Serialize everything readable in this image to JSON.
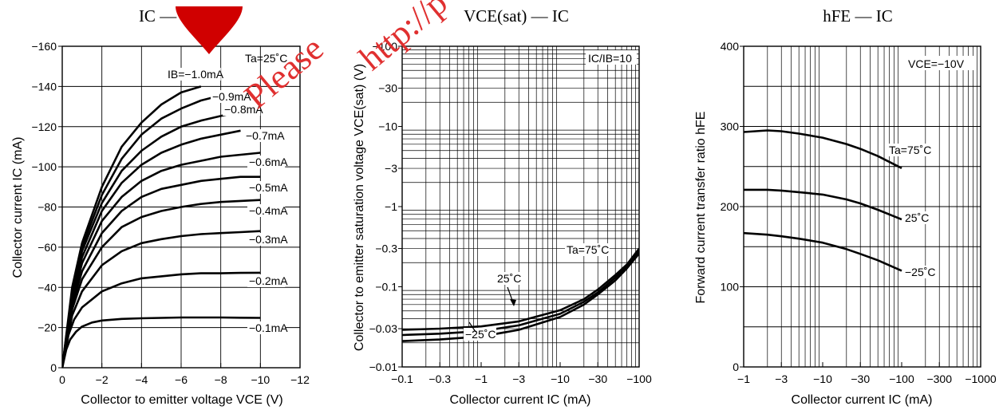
{
  "colors": {
    "curve": "#000000",
    "grid": "#000000",
    "watermark": "#e03030",
    "background": "#ffffff"
  },
  "watermark": {
    "logo_color": "#d00000",
    "text_1": "Please",
    "text_2": "http://p"
  },
  "chart_data": [
    {
      "type": "line",
      "title": "IC — VCE",
      "xlabel": "Collector to emitter voltage VCE (V)",
      "ylabel": "Collector current IC (mA)",
      "xlim": [
        0,
        -12
      ],
      "ylim": [
        0,
        -160
      ],
      "xticks": [
        "0",
        "−2",
        "−4",
        "−6",
        "−8",
        "−10",
        "−12"
      ],
      "yticks": [
        "0",
        "−20",
        "−40",
        "−60",
        "−80",
        "−100",
        "−120",
        "−140",
        "−160"
      ],
      "grid": true,
      "annotation": "Ta=25˚C",
      "series": [
        {
          "name": "IB=−1.0mA",
          "label": "IB=−1.0mA",
          "x": [
            0,
            -0.5,
            -1,
            -2,
            -3,
            -4,
            -5,
            -6,
            -7
          ],
          "y": [
            0,
            -40,
            -62,
            -90,
            -110,
            -122,
            -131,
            -137,
            -140
          ]
        },
        {
          "name": "−0.9mA",
          "label": "−0.9mA",
          "x": [
            0,
            -0.5,
            -1,
            -2,
            -3,
            -4,
            -5,
            -6,
            -7,
            -7.8
          ],
          "y": [
            0,
            -38,
            -60,
            -86,
            -104,
            -116,
            -124,
            -129,
            -133,
            -135
          ]
        },
        {
          "name": "−0.8mA",
          "label": "−0.8mA",
          "x": [
            0,
            -0.5,
            -1,
            -2,
            -3,
            -4,
            -5,
            -6,
            -7,
            -8.3
          ],
          "y": [
            0,
            -37,
            -58,
            -82,
            -98,
            -108,
            -115,
            -120,
            -123,
            -126
          ]
        },
        {
          "name": "−0.7mA",
          "label": "−0.7mA",
          "x": [
            0,
            -0.5,
            -1,
            -2,
            -3,
            -4,
            -5,
            -6,
            -7,
            -8,
            -9
          ],
          "y": [
            0,
            -35,
            -55,
            -78,
            -92,
            -101,
            -107,
            -111,
            -114,
            -116,
            -118
          ]
        },
        {
          "name": "−0.6mA",
          "label": "−0.6mA",
          "x": [
            0,
            -0.5,
            -1,
            -2,
            -3,
            -4,
            -5,
            -6,
            -7,
            -8,
            -9,
            -10
          ],
          "y": [
            0,
            -33,
            -52,
            -73,
            -85,
            -93,
            -98,
            -101,
            -103,
            -105,
            -106,
            -107
          ]
        },
        {
          "name": "−0.5mA",
          "label": "−0.5mA",
          "x": [
            0,
            -0.5,
            -1,
            -2,
            -3,
            -4,
            -5,
            -6,
            -7,
            -8,
            -9,
            -10
          ],
          "y": [
            0,
            -31,
            -48,
            -67,
            -78,
            -85,
            -89,
            -91,
            -93,
            -94,
            -95,
            -95
          ]
        },
        {
          "name": "−0.4mA",
          "label": "−0.4mA",
          "x": [
            0,
            -0.5,
            -1,
            -2,
            -3,
            -4,
            -5,
            -6,
            -7,
            -8,
            -9,
            -10
          ],
          "y": [
            0,
            -29,
            -44,
            -60,
            -70,
            -75,
            -78,
            -80,
            -81.5,
            -82.5,
            -83,
            -83.5
          ]
        },
        {
          "name": "−0.3mA",
          "label": "−0.3mA",
          "x": [
            0,
            -0.5,
            -1,
            -2,
            -3,
            -4,
            -5,
            -6,
            -7,
            -8,
            -9,
            -10
          ],
          "y": [
            0,
            -26,
            -38,
            -51,
            -58,
            -62,
            -64,
            -65.5,
            -66.5,
            -67,
            -67.5,
            -68
          ]
        },
        {
          "name": "−0.2mA",
          "label": "−0.2mA",
          "x": [
            0,
            -0.3,
            -0.6,
            -1,
            -2,
            -3,
            -4,
            -5,
            -6,
            -7,
            -8,
            -9,
            -10
          ],
          "y": [
            0,
            -16,
            -24,
            -30,
            -38,
            -42,
            -44.5,
            -45.5,
            -46.5,
            -47,
            -47,
            -47.2,
            -47.3
          ]
        },
        {
          "name": "−0.1mA",
          "label": "−0.1mA",
          "x": [
            0,
            -0.2,
            -0.4,
            -0.7,
            -1,
            -1.5,
            -2,
            -3,
            -4,
            -5,
            -6,
            -7,
            -8,
            -9,
            -10
          ],
          "y": [
            0,
            -9,
            -14,
            -18,
            -20.5,
            -22.5,
            -23.5,
            -24.3,
            -24.6,
            -24.8,
            -25,
            -25,
            -25,
            -24.9,
            -24.8
          ]
        }
      ]
    },
    {
      "type": "line",
      "title": "VCE(sat) — IC",
      "xlabel": "Collector current IC (mA)",
      "ylabel": "Collector to emitter saturation voltage VCE(sat) (V)",
      "xscale": "log",
      "yscale": "log",
      "xlim": [
        -0.1,
        -100
      ],
      "ylim": [
        -0.01,
        -100
      ],
      "xticks": [
        "−0.1",
        "−0.3",
        "−1",
        "−3",
        "−10",
        "−30",
        "−100"
      ],
      "yticks": [
        "−0.01",
        "−0.03",
        "−0.1",
        "−0.3",
        "−1",
        "−3",
        "−10",
        "−30",
        "−100"
      ],
      "grid": true,
      "annotation": "IC/IB=10",
      "series": [
        {
          "name": "Ta=75˚C",
          "label": "Ta=75˚C",
          "x": [
            -0.1,
            -0.3,
            -1,
            -3,
            -10,
            -20,
            -30,
            -50,
            -70,
            -100
          ],
          "y": [
            -0.021,
            -0.022,
            -0.024,
            -0.029,
            -0.042,
            -0.06,
            -0.08,
            -0.12,
            -0.17,
            -0.26
          ]
        },
        {
          "name": "25˚C",
          "label": "25˚C",
          "x": [
            -0.1,
            -0.3,
            -1,
            -3,
            -10,
            -20,
            -30,
            -50,
            -70,
            -100
          ],
          "y": [
            -0.025,
            -0.026,
            -0.028,
            -0.033,
            -0.046,
            -0.065,
            -0.085,
            -0.13,
            -0.18,
            -0.28
          ]
        },
        {
          "name": "−25˚C",
          "label": "−25˚C",
          "x": [
            -0.1,
            -0.3,
            -1,
            -3,
            -10,
            -20,
            -30,
            -50,
            -70,
            -100
          ],
          "y": [
            -0.029,
            -0.03,
            -0.032,
            -0.037,
            -0.051,
            -0.07,
            -0.092,
            -0.14,
            -0.19,
            -0.3
          ]
        }
      ]
    },
    {
      "type": "line",
      "title": "hFE — IC",
      "xlabel": "Collector current IC (mA)",
      "ylabel": "Forward current transfer ratio hFE",
      "xscale": "log",
      "xlim": [
        -1,
        -1000
      ],
      "ylim": [
        0,
        400
      ],
      "xticks": [
        "−1",
        "−3",
        "−10",
        "−30",
        "−100",
        "−300",
        "−1000"
      ],
      "yticks": [
        "0",
        "100",
        "200",
        "300",
        "400"
      ],
      "grid": true,
      "annotation": "VCE=−10V",
      "series": [
        {
          "name": "Ta=75˚C",
          "label": "Ta=75˚C",
          "x": [
            -1,
            -2,
            -3,
            -5,
            -10,
            -20,
            -30,
            -50,
            -100
          ],
          "y": [
            293,
            295,
            294,
            291,
            286,
            278,
            272,
            263,
            248
          ]
        },
        {
          "name": "25˚C",
          "label": "25˚C",
          "x": [
            -1,
            -2,
            -3,
            -5,
            -10,
            -20,
            -30,
            -50,
            -100
          ],
          "y": [
            221,
            221,
            220,
            218,
            215,
            209,
            204,
            196,
            184
          ]
        },
        {
          "name": "−25˚C",
          "label": "−25˚C",
          "x": [
            -1,
            -2,
            -3,
            -5,
            -10,
            -20,
            -30,
            -50,
            -100
          ],
          "y": [
            167,
            165,
            163,
            160,
            155,
            147,
            141,
            133,
            120
          ]
        }
      ]
    }
  ]
}
